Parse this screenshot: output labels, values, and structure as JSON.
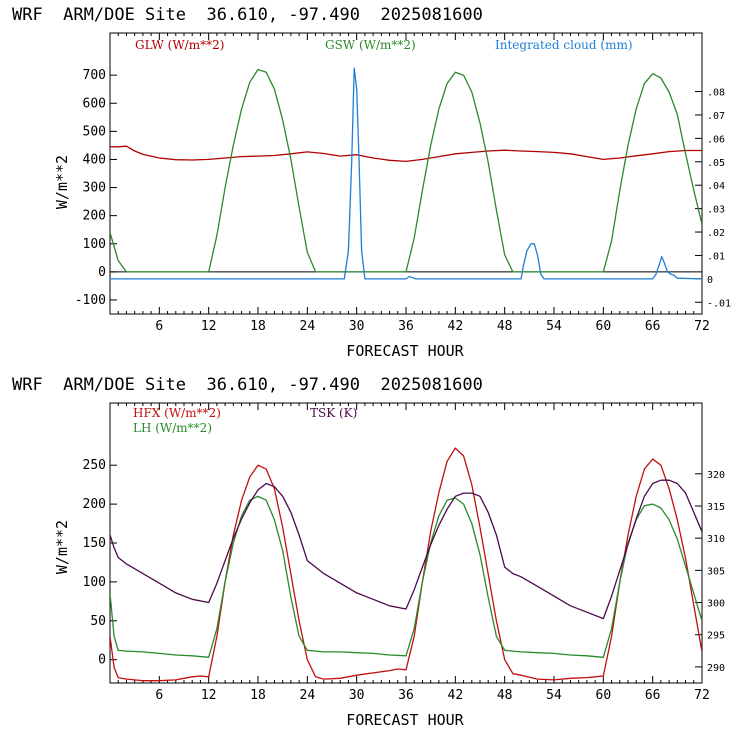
{
  "chart_data": [
    {
      "type": "line",
      "title": "WRF  ARM/DOE Site  36.610, -97.490  2025081600",
      "xlabel": "FORECAST HOUR",
      "ylabel": "W/m**2",
      "xlim": [
        0,
        72
      ],
      "ylim": [
        -150,
        850
      ],
      "y2lim": [
        -0.015,
        0.105
      ],
      "grid": false,
      "legend_position": "top",
      "x_ticks": [
        6,
        12,
        18,
        24,
        30,
        36,
        42,
        48,
        54,
        60,
        66,
        72
      ],
      "y_ticks": [
        -100,
        0,
        100,
        200,
        300,
        400,
        500,
        600,
        700
      ],
      "y_tick_labels": [
        "-100",
        "0",
        "100",
        "200",
        "300",
        "400",
        "500",
        "600",
        "700"
      ],
      "y2_ticks": [
        -0.01,
        0,
        0.01,
        0.02,
        0.03,
        0.04,
        0.05,
        0.06,
        0.07,
        0.08
      ],
      "y2_tick_labels": [
        "-.01",
        "0",
        ".01",
        ".02",
        ".03",
        ".04",
        ".05",
        ".06",
        ".07",
        ".08"
      ],
      "series": [
        {
          "name": "GLW (W/m**2)",
          "color": "#b00000",
          "axis": "left",
          "x": [
            0,
            1,
            2,
            3,
            4,
            6,
            8,
            10,
            12,
            14,
            16,
            18,
            20,
            22,
            24,
            26,
            28,
            30,
            32,
            34,
            36,
            38,
            40,
            42,
            44,
            46,
            48,
            50,
            52,
            54,
            56,
            58,
            60,
            62,
            64,
            66,
            68,
            70,
            72
          ],
          "y": [
            445,
            445,
            447,
            430,
            418,
            405,
            399,
            398,
            400,
            405,
            410,
            412,
            414,
            420,
            427,
            421,
            412,
            417,
            405,
            397,
            393,
            400,
            410,
            420,
            425,
            430,
            433,
            430,
            428,
            425,
            420,
            410,
            400,
            405,
            413,
            420,
            428,
            432,
            432
          ]
        },
        {
          "name": "GSW (W/m**2)",
          "color": "#2a8a2a",
          "axis": "left",
          "x": [
            0,
            1,
            2,
            12,
            13,
            14,
            15,
            16,
            17,
            18,
            19,
            20,
            21,
            22,
            23,
            24,
            25,
            36,
            37,
            38,
            39,
            40,
            41,
            42,
            43,
            44,
            45,
            46,
            47,
            48,
            49,
            60,
            61,
            62,
            63,
            64,
            65,
            66,
            67,
            68,
            69,
            70,
            71,
            72
          ],
          "y": [
            140,
            40,
            0,
            0,
            130,
            300,
            450,
            580,
            675,
            720,
            710,
            650,
            540,
            400,
            230,
            70,
            0,
            0,
            120,
            290,
            450,
            580,
            670,
            710,
            700,
            640,
            530,
            390,
            220,
            60,
            0,
            0,
            110,
            290,
            450,
            580,
            670,
            705,
            690,
            640,
            560,
            420,
            290,
            170
          ]
        },
        {
          "name": "Integrated cloud (mm)",
          "color": "#1e7fd6",
          "axis": "right",
          "x": [
            0,
            28.5,
            29,
            29.4,
            29.7,
            30,
            30.3,
            30.6,
            31,
            31.5,
            36,
            36.4,
            36.8,
            37.2,
            50,
            50.3,
            50.7,
            51.2,
            51.6,
            52,
            52.4,
            52.8,
            66,
            66.4,
            66.8,
            67.1,
            67.4,
            67.8,
            68.2,
            68.6,
            69,
            72
          ],
          "y": [
            0,
            0,
            0.012,
            0.05,
            0.09,
            0.081,
            0.05,
            0.012,
            0,
            0,
            0,
            0.001,
            0.0005,
            0,
            0,
            0.006,
            0.012,
            0.015,
            0.015,
            0.01,
            0.002,
            0,
            0,
            0.002,
            0.006,
            0.0095,
            0.007,
            0.003,
            0.002,
            0.0015,
            0.0003,
            0
          ]
        }
      ]
    },
    {
      "type": "line",
      "title": "WRF  ARM/DOE Site  36.610, -97.490  2025081600",
      "xlabel": "FORECAST HOUR",
      "ylabel": "W/m**2",
      "xlim": [
        0,
        72
      ],
      "ylim": [
        -30,
        330
      ],
      "y2lim": [
        287.5,
        331.0
      ],
      "grid": false,
      "legend_position": "top-left",
      "x_ticks": [
        6,
        12,
        18,
        24,
        30,
        36,
        42,
        48,
        54,
        60,
        66,
        72
      ],
      "y_ticks": [
        0,
        50,
        100,
        150,
        200,
        250
      ],
      "y_tick_labels": [
        "0",
        "50",
        "100",
        "150",
        "200",
        "250"
      ],
      "y2_ticks": [
        290,
        295,
        300,
        305,
        310,
        315,
        320
      ],
      "y2_tick_labels": [
        "290",
        "295",
        "300",
        "305",
        "310",
        "315",
        "320"
      ],
      "series": [
        {
          "name": "HFX (W/m**2)",
          "color": "#c01010",
          "axis": "left",
          "x": [
            0,
            0.5,
            1,
            2,
            3,
            4,
            6,
            8,
            9,
            10,
            11,
            12,
            13,
            14,
            15,
            16,
            17,
            18,
            19,
            20,
            21,
            22,
            23,
            24,
            25,
            26,
            28,
            30,
            32,
            34,
            35,
            36,
            37,
            38,
            39,
            40,
            41,
            42,
            43,
            44,
            45,
            46,
            47,
            48,
            49,
            50,
            52,
            54,
            56,
            58,
            59,
            60,
            61,
            62,
            63,
            64,
            65,
            66,
            67,
            68,
            69,
            70,
            71,
            72
          ],
          "y": [
            30,
            -10,
            -23,
            -25,
            -26,
            -27,
            -27,
            -26,
            -24,
            -22,
            -21,
            -22,
            30,
            100,
            160,
            205,
            235,
            250,
            245,
            220,
            170,
            110,
            50,
            0,
            -22,
            -25,
            -24,
            -20,
            -17,
            -14,
            -12,
            -13,
            30,
            100,
            165,
            215,
            255,
            272,
            262,
            225,
            170,
            110,
            50,
            0,
            -18,
            -20,
            -25,
            -26,
            -24,
            -23,
            -22,
            -21,
            30,
            100,
            160,
            210,
            245,
            258,
            250,
            220,
            180,
            130,
            70,
            10
          ]
        },
        {
          "name": "LH (W/m**2)",
          "color": "#2a8a2a",
          "axis": "left",
          "x": [
            0,
            0.5,
            1,
            2,
            4,
            6,
            8,
            10,
            12,
            13,
            14,
            15,
            16,
            17,
            18,
            19,
            20,
            21,
            22,
            23,
            24,
            25,
            26,
            28,
            30,
            32,
            34,
            36,
            37,
            38,
            39,
            40,
            41,
            42,
            43,
            44,
            45,
            46,
            47,
            48,
            49,
            50,
            52,
            54,
            56,
            58,
            60,
            61,
            62,
            63,
            64,
            65,
            66,
            67,
            68,
            69,
            70,
            71,
            72
          ],
          "y": [
            85,
            30,
            12,
            11,
            10,
            8,
            6,
            5,
            3,
            40,
            100,
            150,
            185,
            205,
            210,
            205,
            180,
            140,
            80,
            30,
            12,
            11,
            10,
            10,
            9,
            8,
            6,
            5,
            40,
            100,
            150,
            185,
            205,
            208,
            200,
            175,
            135,
            80,
            30,
            12,
            11,
            10,
            9,
            8,
            6,
            5,
            3,
            40,
            100,
            150,
            180,
            198,
            200,
            195,
            180,
            155,
            120,
            85,
            50
          ]
        },
        {
          "name": "TSK (K)",
          "color": "#4b0a4b",
          "axis": "right",
          "x": [
            0,
            0.5,
            1,
            2,
            4,
            6,
            8,
            10,
            12,
            13,
            14,
            15,
            16,
            17,
            18,
            19,
            20,
            21,
            22,
            23,
            24,
            25,
            26,
            28,
            30,
            32,
            34,
            36,
            37,
            38,
            39,
            40,
            41,
            42,
            43,
            44,
            45,
            46,
            47,
            48,
            49,
            50,
            52,
            54,
            56,
            58,
            60,
            61,
            62,
            63,
            64,
            65,
            66,
            67,
            68,
            69,
            70,
            71,
            72
          ],
          "y": [
            310.5,
            308.5,
            307,
            306,
            304.5,
            303,
            301.5,
            300.5,
            300,
            303,
            306.5,
            310,
            313,
            315.5,
            317.5,
            318.5,
            318,
            316.5,
            314,
            310.5,
            306.5,
            305.5,
            304.5,
            303,
            301.5,
            300.5,
            299.5,
            299,
            302,
            305.5,
            309,
            312,
            314.5,
            316.5,
            317,
            317,
            316.5,
            314,
            310.5,
            305.5,
            304.5,
            304,
            302.5,
            301,
            299.5,
            298.5,
            297.5,
            301,
            305,
            309,
            313,
            316.5,
            318.5,
            319,
            319,
            318.5,
            317,
            314,
            311
          ]
        }
      ]
    }
  ]
}
